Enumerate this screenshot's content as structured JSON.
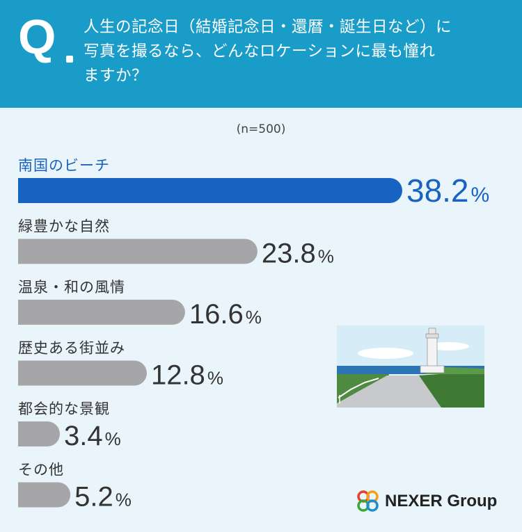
{
  "header": {
    "q_label": "Q",
    "question_lines": [
      "人生の記念日（結婚記念日・還暦・誕生日など）に",
      "写真を撮るなら、どんなロケーションに最も憧れ",
      "ますか？"
    ]
  },
  "sample_size": "(n=500)",
  "chart_data": {
    "type": "bar",
    "orientation": "horizontal",
    "categories": [
      "南国のビーチ",
      "緑豊かな自然",
      "温泉・和の風情",
      "歴史ある街並み",
      "都会的な景観",
      "その他"
    ],
    "values": [
      38.2,
      23.8,
      16.6,
      12.8,
      3.4,
      5.2
    ],
    "value_labels": [
      "38.2",
      "23.8",
      "16.6",
      "12.8",
      "3.4",
      "5.2"
    ],
    "unit": "%",
    "highlight_index": 0,
    "colors": {
      "highlight": "#1763c1",
      "default": "#a6a6a8",
      "label_default": "#333333",
      "label_highlight": "#1763c1"
    }
  },
  "brand": {
    "name": "NEXER Group"
  }
}
